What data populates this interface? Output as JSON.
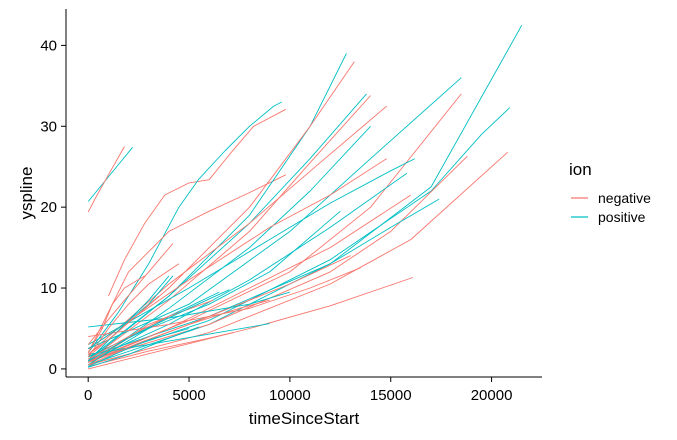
{
  "chart_data": {
    "type": "line",
    "title": "",
    "xlabel": "timeSinceStart",
    "ylabel": "yspline",
    "xlim": [
      -1100,
      22500
    ],
    "ylim": [
      -1.0,
      44.5
    ],
    "x_ticks": [
      0,
      5000,
      10000,
      15000,
      20000
    ],
    "x_tick_labels": [
      "0",
      "5000",
      "10000",
      "15000",
      "20000"
    ],
    "y_ticks": [
      0,
      10,
      20,
      30,
      40
    ],
    "y_tick_labels": [
      "0",
      "10",
      "20",
      "30",
      "40"
    ],
    "grid": false,
    "legend": {
      "title": "ion",
      "position": "right",
      "entries": [
        "negative",
        "positive"
      ]
    },
    "colors": {
      "negative": "#F8766D",
      "positive": "#00BFC4"
    },
    "series": [
      {
        "group": "positive",
        "points": [
          [
            0,
            20.7
          ],
          [
            2200,
            27.4
          ]
        ]
      },
      {
        "group": "negative",
        "points": [
          [
            0,
            19.4
          ],
          [
            400,
            21.3
          ],
          [
            1000,
            24.0
          ],
          [
            1800,
            27.5
          ]
        ]
      },
      {
        "group": "negative",
        "points": [
          [
            1000,
            9.0
          ],
          [
            1800,
            13.5
          ],
          [
            2800,
            18.0
          ],
          [
            3800,
            21.5
          ],
          [
            5000,
            23.0
          ],
          [
            6000,
            23.4
          ],
          [
            7000,
            26.5
          ],
          [
            8200,
            30.0
          ],
          [
            9800,
            32.1
          ]
        ]
      },
      {
        "group": "positive",
        "points": [
          [
            0,
            2.0
          ],
          [
            1500,
            7.0
          ],
          [
            3000,
            13.0
          ],
          [
            4500,
            20.0
          ],
          [
            5500,
            23.5
          ],
          [
            6800,
            27.0
          ],
          [
            8000,
            30.0
          ],
          [
            9200,
            32.5
          ],
          [
            9600,
            33.0
          ]
        ]
      },
      {
        "group": "negative",
        "points": [
          [
            0,
            2.0
          ],
          [
            2000,
            12.0
          ],
          [
            4000,
            17.0
          ],
          [
            6000,
            19.5
          ],
          [
            8000,
            21.8
          ],
          [
            9800,
            24.0
          ]
        ]
      },
      {
        "group": "positive",
        "points": [
          [
            0,
            1.0
          ],
          [
            4000,
            9.0
          ],
          [
            8000,
            19.0
          ],
          [
            11000,
            30.0
          ],
          [
            12800,
            39.0
          ]
        ]
      },
      {
        "group": "negative",
        "points": [
          [
            0,
            1.5
          ],
          [
            4000,
            10.0
          ],
          [
            8000,
            20.0
          ],
          [
            11000,
            30.0
          ],
          [
            13200,
            38.0
          ]
        ]
      },
      {
        "group": "positive",
        "points": [
          [
            0,
            1.2
          ],
          [
            4000,
            9.0
          ],
          [
            8000,
            18.0
          ],
          [
            11000,
            26.0
          ],
          [
            13800,
            34.0
          ]
        ]
      },
      {
        "group": "negative",
        "points": [
          [
            0,
            1.0
          ],
          [
            4000,
            8.5
          ],
          [
            8000,
            17.0
          ],
          [
            11000,
            25.5
          ],
          [
            14000,
            33.8
          ]
        ]
      },
      {
        "group": "positive",
        "points": [
          [
            0,
            0.5
          ],
          [
            4000,
            7.5
          ],
          [
            8000,
            15.0
          ],
          [
            11000,
            22.0
          ],
          [
            14000,
            30.0
          ]
        ]
      },
      {
        "group": "negative",
        "points": [
          [
            0,
            1.8
          ],
          [
            4000,
            10.5
          ],
          [
            8000,
            18.0
          ],
          [
            11500,
            25.5
          ],
          [
            14800,
            32.5
          ]
        ]
      },
      {
        "group": "positive",
        "points": [
          [
            0,
            2.5
          ],
          [
            5000,
            8.0
          ],
          [
            10000,
            17.0
          ],
          [
            14000,
            26.0
          ],
          [
            18500,
            36.0
          ]
        ]
      },
      {
        "group": "negative",
        "points": [
          [
            0,
            1.0
          ],
          [
            5000,
            6.0
          ],
          [
            10000,
            12.0
          ],
          [
            14000,
            20.0
          ],
          [
            18500,
            34.0
          ]
        ]
      },
      {
        "group": "positive",
        "points": [
          [
            0,
            0.5
          ],
          [
            6000,
            5.5
          ],
          [
            12000,
            13.0
          ],
          [
            17000,
            22.5
          ],
          [
            21500,
            42.5
          ]
        ]
      },
      {
        "group": "positive",
        "points": [
          [
            0,
            1.0
          ],
          [
            6000,
            6.0
          ],
          [
            12000,
            13.5
          ],
          [
            17000,
            22.0
          ],
          [
            19500,
            29.0
          ],
          [
            20900,
            32.3
          ]
        ]
      },
      {
        "group": "negative",
        "points": [
          [
            0,
            0.5
          ],
          [
            6000,
            4.5
          ],
          [
            12000,
            10.5
          ],
          [
            16000,
            16.0
          ],
          [
            20800,
            26.8
          ]
        ]
      },
      {
        "group": "negative",
        "points": [
          [
            0,
            1.0
          ],
          [
            6000,
            5.5
          ],
          [
            12000,
            12.0
          ],
          [
            15000,
            17.0
          ],
          [
            18800,
            26.3
          ]
        ]
      },
      {
        "group": "positive",
        "points": [
          [
            0,
            1.5
          ],
          [
            6000,
            6.5
          ],
          [
            12000,
            13.0
          ],
          [
            15000,
            17.5
          ],
          [
            17400,
            21.0
          ]
        ]
      },
      {
        "group": "negative",
        "points": [
          [
            0,
            0.8
          ],
          [
            5000,
            5.5
          ],
          [
            10000,
            10.5
          ],
          [
            13000,
            14.0
          ]
        ]
      },
      {
        "group": "positive",
        "points": [
          [
            0,
            1.5
          ],
          [
            3000,
            5.0
          ],
          [
            6000,
            8.0
          ],
          [
            9000,
            12.0
          ],
          [
            12500,
            19.5
          ]
        ]
      },
      {
        "group": "positive",
        "points": [
          [
            0,
            3.0
          ],
          [
            5000,
            10.0
          ],
          [
            9000,
            16.0
          ],
          [
            12000,
            20.5
          ],
          [
            15000,
            24.5
          ],
          [
            16200,
            26.0
          ]
        ]
      },
      {
        "group": "negative",
        "points": [
          [
            0,
            2.5
          ],
          [
            5000,
            11.0
          ],
          [
            9000,
            17.5
          ],
          [
            12000,
            21.5
          ],
          [
            14800,
            26.0
          ]
        ]
      },
      {
        "group": "positive",
        "points": [
          [
            0,
            1.0
          ],
          [
            4000,
            5.5
          ],
          [
            8000,
            11.0
          ],
          [
            12000,
            17.5
          ],
          [
            15800,
            24.2
          ]
        ]
      },
      {
        "group": "negative",
        "points": [
          [
            0,
            0.8
          ],
          [
            4000,
            5.0
          ],
          [
            8000,
            10.0
          ],
          [
            12000,
            15.0
          ],
          [
            16000,
            21.5
          ]
        ]
      },
      {
        "group": "positive",
        "points": [
          [
            0,
            5.2
          ],
          [
            4000,
            6.3
          ],
          [
            8000,
            8.0
          ],
          [
            10000,
            9.5
          ]
        ]
      },
      {
        "group": "negative",
        "points": [
          [
            0,
            4.0
          ],
          [
            4000,
            5.5
          ],
          [
            8000,
            7.5
          ],
          [
            11000,
            10.0
          ],
          [
            13500,
            12.5
          ]
        ]
      },
      {
        "group": "negative",
        "points": [
          [
            0,
            0.0
          ],
          [
            4000,
            2.5
          ],
          [
            8000,
            5.0
          ],
          [
            12000,
            7.8
          ],
          [
            16100,
            11.3
          ]
        ]
      },
      {
        "group": "positive",
        "points": [
          [
            0,
            1.8
          ],
          [
            3000,
            3.0
          ],
          [
            6000,
            4.3
          ],
          [
            9000,
            5.6
          ]
        ]
      },
      {
        "group": "negative",
        "points": [
          [
            0,
            0.3
          ],
          [
            3000,
            2.2
          ],
          [
            6000,
            3.8
          ],
          [
            7200,
            4.5
          ]
        ]
      },
      {
        "group": "negative",
        "points": [
          [
            0,
            1.5
          ],
          [
            1000,
            5.0
          ],
          [
            2000,
            8.0
          ],
          [
            3000,
            10.5
          ],
          [
            4500,
            13.0
          ]
        ]
      },
      {
        "group": "positive",
        "points": [
          [
            0,
            1.0
          ],
          [
            1000,
            3.5
          ],
          [
            2000,
            6.0
          ],
          [
            3000,
            8.5
          ],
          [
            4000,
            11.5
          ]
        ]
      },
      {
        "group": "negative",
        "points": [
          [
            0,
            2.0
          ],
          [
            700,
            5.0
          ],
          [
            1200,
            8.0
          ],
          [
            1800,
            10.0
          ],
          [
            2800,
            11.5
          ]
        ]
      },
      {
        "group": "positive",
        "points": [
          [
            0,
            2.5
          ],
          [
            1500,
            5.0
          ],
          [
            3000,
            8.0
          ],
          [
            4200,
            11.5
          ]
        ]
      },
      {
        "group": "negative",
        "points": [
          [
            0,
            0.8
          ],
          [
            1500,
            3.0
          ],
          [
            3000,
            5.5
          ],
          [
            4500,
            7.0
          ]
        ]
      },
      {
        "group": "positive",
        "points": [
          [
            0,
            0.3
          ],
          [
            1500,
            2.0
          ],
          [
            3000,
            3.6
          ],
          [
            5000,
            5.0
          ]
        ]
      },
      {
        "group": "negative",
        "points": [
          [
            0,
            3.0
          ],
          [
            800,
            5.5
          ],
          [
            1800,
            8.5
          ],
          [
            3000,
            12.0
          ],
          [
            4200,
            15.5
          ]
        ]
      },
      {
        "group": "positive",
        "points": [
          [
            0,
            0.5
          ],
          [
            2000,
            3.5
          ],
          [
            4000,
            6.5
          ],
          [
            6500,
            9.5
          ]
        ]
      },
      {
        "group": "negative",
        "points": [
          [
            0,
            1.2
          ],
          [
            2000,
            4.0
          ],
          [
            4000,
            6.5
          ],
          [
            6200,
            8.5
          ]
        ]
      },
      {
        "group": "positive",
        "points": [
          [
            0,
            1.0
          ],
          [
            2500,
            4.5
          ],
          [
            5000,
            7.5
          ],
          [
            7000,
            9.8
          ]
        ]
      },
      {
        "group": "negative",
        "points": [
          [
            0,
            0.5
          ],
          [
            2500,
            3.2
          ],
          [
            5000,
            5.5
          ],
          [
            7500,
            7.5
          ],
          [
            9000,
            8.5
          ]
        ]
      },
      {
        "group": "positive",
        "points": [
          [
            0,
            0.2
          ],
          [
            2000,
            1.8
          ],
          [
            4000,
            3.8
          ],
          [
            5500,
            5.2
          ]
        ]
      },
      {
        "group": "negative",
        "points": [
          [
            0,
            1.8
          ],
          [
            1200,
            4.0
          ],
          [
            2500,
            6.8
          ],
          [
            3500,
            9.0
          ]
        ]
      }
    ]
  }
}
